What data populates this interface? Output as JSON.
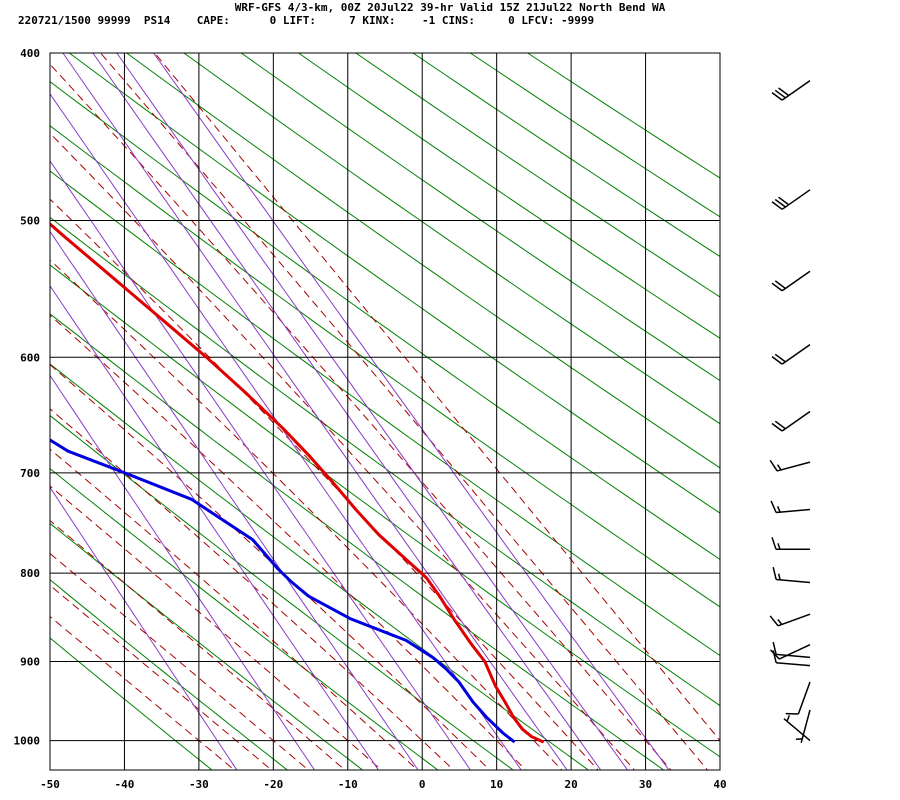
{
  "header": {
    "title": "WRF-GFS 4/3-km, 00Z 20Jul22 39-hr Valid 15Z 21Jul22 North Bend WA",
    "stats": "220721/1500 99999  PS14    CAPE:      0 LIFT:     7 KINX:    -1 CINS:     0 LFCV: -9999"
  },
  "chart_data": {
    "type": "skew-t log-p sounding",
    "title": "WRF-GFS 4/3-km, 00Z 20Jul22 39-hr Valid 15Z 21Jul22 North Bend WA",
    "x_axis": {
      "label": "",
      "unit": "°C",
      "range": [
        -50,
        40
      ],
      "ticks": [
        -50,
        -40,
        -30,
        -20,
        -10,
        0,
        10,
        20,
        30,
        40
      ]
    },
    "y_axis": {
      "label": "",
      "unit": "hPa",
      "scale": "log",
      "range": [
        1040,
        400
      ],
      "ticks": [
        400,
        500,
        600,
        700,
        800,
        900,
        1000
      ]
    },
    "grid": true,
    "background": {
      "isotherm_color": "#000000",
      "dry_adiabat_color": "#008000",
      "moist_adiabat_color": "#aa0000",
      "mixing_ratio_color": "#8b3cc8"
    },
    "series": [
      {
        "color": "#e00000",
        "values": [
          {
            "p": 1002,
            "t": 16.2
          },
          {
            "p": 995,
            "t": 15.0
          },
          {
            "p": 985,
            "t": 14.3
          },
          {
            "p": 970,
            "t": 14.0
          },
          {
            "p": 950,
            "t": 14.0
          },
          {
            "p": 930,
            "t": 13.9
          },
          {
            "p": 915,
            "t": 14.1
          },
          {
            "p": 900,
            "t": 14.3
          },
          {
            "p": 880,
            "t": 13.8
          },
          {
            "p": 850,
            "t": 13.3
          },
          {
            "p": 825,
            "t": 13.1
          },
          {
            "p": 805,
            "t": 12.7
          },
          {
            "p": 785,
            "t": 11.3
          },
          {
            "p": 760,
            "t": 9.5
          },
          {
            "p": 735,
            "t": 8.3
          },
          {
            "p": 710,
            "t": 7.3
          },
          {
            "p": 685,
            "t": 6.1
          },
          {
            "p": 660,
            "t": 4.6
          },
          {
            "p": 630,
            "t": 2.3
          },
          {
            "p": 600,
            "t": -0.4
          },
          {
            "p": 570,
            "t": -3.6
          },
          {
            "p": 540,
            "t": -7.0
          },
          {
            "p": 510,
            "t": -10.6
          },
          {
            "p": 480,
            "t": -14.2
          },
          {
            "p": 450,
            "t": -18.1
          },
          {
            "p": 430,
            "t": -21.2
          },
          {
            "p": 416,
            "t": -23.3
          }
        ]
      },
      {
        "color": "#0000e0",
        "values": [
          {
            "p": 1002,
            "t": 12.3
          },
          {
            "p": 990,
            "t": 11.4
          },
          {
            "p": 970,
            "t": 10.4
          },
          {
            "p": 950,
            "t": 9.7
          },
          {
            "p": 925,
            "t": 9.3
          },
          {
            "p": 910,
            "t": 8.6
          },
          {
            "p": 895,
            "t": 7.6
          },
          {
            "p": 875,
            "t": 5.3
          },
          {
            "p": 850,
            "t": -0.6
          },
          {
            "p": 825,
            "t": -4.5
          },
          {
            "p": 810,
            "t": -5.7
          },
          {
            "p": 795,
            "t": -6.6
          },
          {
            "p": 765,
            "t": -7.8
          },
          {
            "p": 725,
            "t": -13.0
          },
          {
            "p": 700,
            "t": -20.0
          },
          {
            "p": 680,
            "t": -26.0
          },
          {
            "p": 660,
            "t": -29.2
          },
          {
            "p": 638,
            "t": -32.0
          },
          {
            "p": 615,
            "t": -32.6
          },
          {
            "p": 595,
            "t": -33.3
          },
          {
            "p": 560,
            "t": -36.6
          },
          {
            "p": 530,
            "t": -39.0
          },
          {
            "p": 500,
            "t": -40.9
          },
          {
            "p": 470,
            "t": -42.4
          },
          {
            "p": 440,
            "t": -44.0
          },
          {
            "p": 415,
            "t": -45.4
          }
        ]
      }
    ],
    "wind_barbs": [
      {
        "p": 415,
        "dir": 235,
        "speed_kt": 30
      },
      {
        "p": 480,
        "dir": 235,
        "speed_kt": 30
      },
      {
        "p": 535,
        "dir": 235,
        "speed_kt": 20
      },
      {
        "p": 590,
        "dir": 235,
        "speed_kt": 20
      },
      {
        "p": 645,
        "dir": 235,
        "speed_kt": 20
      },
      {
        "p": 690,
        "dir": 255,
        "speed_kt": 15
      },
      {
        "p": 735,
        "dir": 265,
        "speed_kt": 15
      },
      {
        "p": 775,
        "dir": 270,
        "speed_kt": 15
      },
      {
        "p": 810,
        "dir": 275,
        "speed_kt": 15
      },
      {
        "p": 845,
        "dir": 250,
        "speed_kt": 15
      },
      {
        "p": 880,
        "dir": 245,
        "speed_kt": 10
      },
      {
        "p": 895,
        "dir": 275,
        "speed_kt": 10
      },
      {
        "p": 905,
        "dir": 275,
        "speed_kt": 10
      },
      {
        "p": 925,
        "dir": 200,
        "speed_kt": 10
      },
      {
        "p": 960,
        "dir": 195,
        "speed_kt": 5
      },
      {
        "p": 1000,
        "dir": 310,
        "speed_kt": 5
      }
    ]
  }
}
